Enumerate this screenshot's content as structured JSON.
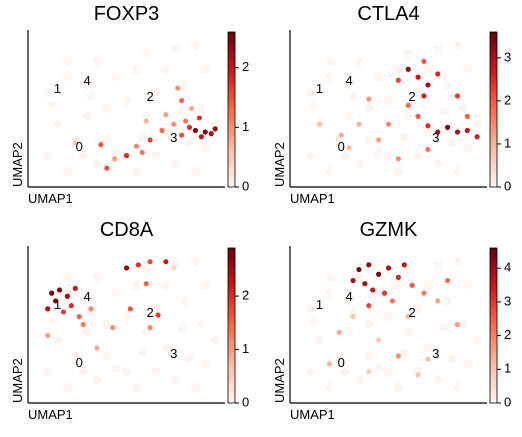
{
  "chart_data": [
    {
      "type": "scatter",
      "title": "FOXP3",
      "xlabel": "UMAP1",
      "ylabel": "UMAP2",
      "xlim": [
        0,
        10
      ],
      "ylim": [
        0,
        10
      ],
      "colormap": [
        "#fff5f0",
        "#fcbba1",
        "#fb6a4a",
        "#cb181d",
        "#67000d"
      ],
      "clim": [
        0,
        2.6
      ],
      "cticks": [
        0,
        1,
        2
      ],
      "annotations": [
        {
          "text": "1",
          "x": 1.5,
          "y": 6.2
        },
        {
          "text": "4",
          "x": 3.0,
          "y": 6.7
        },
        {
          "text": "2",
          "x": 6.2,
          "y": 5.7
        },
        {
          "text": "0",
          "x": 2.6,
          "y": 2.5
        },
        {
          "text": "3",
          "x": 7.4,
          "y": 3.1
        }
      ],
      "x": [
        1,
        2,
        3,
        1.5,
        2.5,
        1,
        2,
        3.5,
        4,
        5,
        5.5,
        6.5,
        7.5,
        8.5,
        9,
        7,
        6,
        5,
        4,
        3,
        6.5,
        7,
        7.5,
        8.5,
        9,
        8,
        4.5,
        3.5,
        2,
        5.5,
        6,
        8.8,
        9.5,
        4.5,
        2.8,
        1.2,
        3.2,
        5.8,
        7.8,
        8.2,
        8.5,
        9,
        9.3,
        8.8,
        8.2,
        7.8,
        9.5,
        8,
        7.4,
        6.8,
        6.2,
        5.5,
        5.0,
        4.4,
        3.7,
        7.6,
        7.8,
        8.3,
        6.0,
        7.0,
        4.0,
        8.7,
        2.4,
        5.8
      ],
      "y": [
        6,
        7,
        6.5,
        4,
        3,
        2,
        1,
        1.5,
        3,
        2,
        1,
        2,
        1.5,
        1,
        2.5,
        3.5,
        4.5,
        5.5,
        5,
        4.5,
        6,
        7.5,
        8.8,
        9,
        7.5,
        6.5,
        7,
        8,
        8,
        7.5,
        8.5,
        5,
        4,
        2.2,
        2,
        5.2,
        5.8,
        3.2,
        4.8,
        2.8,
        3.6,
        3.5,
        3.4,
        3.2,
        3.8,
        3.3,
        3.7,
        4.2,
        4.0,
        3.6,
        3.0,
        2.6,
        2.0,
        1.8,
        2.7,
        6.3,
        5.5,
        5.0,
        4.2,
        4.6,
        1.2,
        4.4,
        2.8,
        2.2
      ],
      "values": [
        0,
        0,
        0,
        0,
        0,
        0,
        0,
        0,
        0,
        0,
        0,
        0,
        0,
        0,
        0,
        0,
        0,
        0,
        0,
        0,
        0,
        0,
        0,
        0,
        0,
        0,
        0,
        0,
        0,
        0,
        0,
        0,
        0,
        0,
        0,
        0,
        0,
        0,
        0,
        0,
        2.5,
        2.4,
        2.2,
        2.0,
        1.8,
        1.5,
        2.3,
        1.2,
        1.0,
        1.3,
        1.6,
        1.1,
        1.8,
        0.9,
        1.4,
        1.0,
        1.3,
        0.8,
        0.7,
        0.9,
        1.5,
        1.7,
        0.6,
        1.2
      ]
    },
    {
      "type": "scatter",
      "title": "CTLA4",
      "xlabel": "UMAP1",
      "ylabel": "UMAP2",
      "xlim": [
        0,
        10
      ],
      "ylim": [
        0,
        10
      ],
      "colormap": [
        "#fff5f0",
        "#fcbba1",
        "#fb6a4a",
        "#cb181d",
        "#67000d"
      ],
      "clim": [
        0,
        3.6
      ],
      "cticks": [
        0,
        1,
        2,
        3
      ],
      "annotations": [
        {
          "text": "1",
          "x": 1.5,
          "y": 6.2
        },
        {
          "text": "4",
          "x": 3.0,
          "y": 6.7
        },
        {
          "text": "2",
          "x": 6.2,
          "y": 5.7
        },
        {
          "text": "0",
          "x": 2.6,
          "y": 2.5
        },
        {
          "text": "3",
          "x": 7.4,
          "y": 3.1
        }
      ],
      "x": [
        1,
        2,
        3,
        1.5,
        2.5,
        1,
        2,
        3.5,
        4,
        5,
        5.5,
        6.5,
        7.5,
        8.5,
        9,
        7,
        6,
        5,
        4,
        3,
        6.5,
        7,
        7.5,
        8.5,
        9,
        8,
        4.5,
        3.5,
        2,
        5.5,
        6,
        8.8,
        9.5,
        4.5,
        2.8,
        1.2,
        3.2,
        5.8,
        7.8,
        8.2,
        6,
        6.5,
        7,
        7.5,
        5.5,
        6.8,
        8,
        8.5,
        9,
        9.5,
        7.5,
        7,
        6.5,
        6,
        5,
        4.5,
        3.5,
        3,
        5.5,
        7,
        8.5,
        1.5,
        4,
        6.8,
        9,
        2.6
      ],
      "y": [
        6,
        7,
        6.5,
        4,
        3,
        2,
        1,
        1.5,
        3,
        2,
        1,
        2,
        1.5,
        1,
        2.5,
        3.5,
        4.5,
        5.5,
        5,
        4.5,
        6,
        7.5,
        8.8,
        9,
        7.5,
        6.5,
        7,
        8,
        8,
        7.5,
        8.5,
        5,
        4,
        2.2,
        2,
        5.2,
        5.8,
        3.2,
        4.8,
        2.8,
        7.5,
        7,
        6.5,
        7.2,
        6.8,
        8,
        3.8,
        3.5,
        3.6,
        3.2,
        3.5,
        3.9,
        4.5,
        5.2,
        4.0,
        3.0,
        4.0,
        2.5,
        1.8,
        2.4,
        5.8,
        4.0,
        5.6,
        5.8,
        4.5,
        3.3
      ],
      "values": [
        0,
        0,
        0,
        0,
        0,
        0,
        0,
        0,
        0,
        0,
        0,
        0,
        0,
        0,
        0,
        0,
        0,
        0,
        0,
        0,
        0,
        0,
        0,
        0,
        0,
        0,
        0,
        0,
        0,
        0,
        0,
        0,
        0,
        0,
        0,
        0,
        0,
        0,
        0,
        0,
        3.2,
        2.8,
        3.0,
        2.5,
        2.2,
        2.0,
        3.4,
        3.0,
        2.8,
        2.6,
        3.1,
        2.4,
        2.0,
        1.8,
        1.5,
        1.2,
        1.0,
        0.9,
        1.4,
        1.7,
        2.3,
        0.8,
        1.3,
        2.6,
        1.9,
        1.1
      ]
    },
    {
      "type": "scatter",
      "title": "CD8A",
      "xlabel": "UMAP1",
      "ylabel": "UMAP2",
      "xlim": [
        0,
        10
      ],
      "ylim": [
        0,
        10
      ],
      "colormap": [
        "#fff5f0",
        "#fcbba1",
        "#fb6a4a",
        "#cb181d",
        "#67000d"
      ],
      "clim": [
        0,
        2.9
      ],
      "cticks": [
        0,
        1,
        2
      ],
      "annotations": [
        {
          "text": "1",
          "x": 1.5,
          "y": 6.2
        },
        {
          "text": "4",
          "x": 3.0,
          "y": 6.7
        },
        {
          "text": "2",
          "x": 6.2,
          "y": 5.7
        },
        {
          "text": "0",
          "x": 2.6,
          "y": 2.5
        },
        {
          "text": "3",
          "x": 7.4,
          "y": 3.1
        }
      ],
      "x": [
        1,
        2,
        3,
        1.5,
        2.5,
        1,
        2,
        3.5,
        4,
        5,
        5.5,
        6.5,
        7.5,
        8.5,
        9,
        7,
        6,
        5,
        4,
        3,
        6.5,
        7,
        7.5,
        8.5,
        9,
        8,
        4.5,
        3.5,
        2,
        5.5,
        6,
        8.8,
        9.5,
        4.5,
        2.8,
        1.2,
        3.2,
        5.8,
        7.8,
        8.2,
        1.2,
        1.6,
        2.0,
        1.4,
        2.2,
        1.0,
        1.8,
        2.6,
        2.4,
        3.2,
        1.0,
        2.8,
        5.0,
        5.6,
        6.2,
        7.0,
        7.4,
        6.0,
        6.6,
        6.2,
        3.5,
        5.2,
        4.3
      ],
      "y": [
        6,
        7,
        6.5,
        4,
        3,
        2,
        1,
        1.5,
        3,
        2,
        1,
        2,
        1.5,
        1,
        2.5,
        3.5,
        4.5,
        5.5,
        5,
        4.5,
        6,
        7.5,
        8.8,
        9,
        7.5,
        6.5,
        7,
        8,
        8,
        7.5,
        8.5,
        5,
        4,
        2.2,
        2,
        5.2,
        5.8,
        3.2,
        4.8,
        2.8,
        7.0,
        7.2,
        6.8,
        6.5,
        6.2,
        6.0,
        5.8,
        5.5,
        7.3,
        6.0,
        4.3,
        5.0,
        8.6,
        8.8,
        9.0,
        9.0,
        8.6,
        7.6,
        5.6,
        4.8,
        3.5,
        6.0,
        4.8
      ],
      "values": [
        0,
        0,
        0,
        0,
        0,
        0,
        0,
        0,
        0,
        0,
        0,
        0,
        0,
        0,
        0,
        0,
        0,
        0,
        0,
        0,
        0,
        0,
        0,
        0,
        0,
        0,
        0,
        0,
        0,
        0,
        0,
        0,
        0,
        0,
        0,
        0,
        0,
        0,
        0,
        0,
        2.8,
        2.7,
        2.5,
        2.6,
        2.0,
        2.4,
        1.8,
        1.5,
        2.2,
        1.2,
        1.0,
        1.3,
        2.6,
        2.0,
        1.7,
        2.2,
        0.4,
        1.5,
        1.9,
        1.2,
        0.9,
        1.6,
        1.1
      ]
    },
    {
      "type": "scatter",
      "title": "GZMK",
      "xlabel": "UMAP1",
      "ylabel": "UMAP2",
      "xlim": [
        0,
        10
      ],
      "ylim": [
        0,
        10
      ],
      "colormap": [
        "#fff5f0",
        "#fcbba1",
        "#fb6a4a",
        "#cb181d",
        "#67000d"
      ],
      "clim": [
        0,
        4.6
      ],
      "cticks": [
        0,
        1,
        2,
        3,
        4
      ],
      "annotations": [
        {
          "text": "1",
          "x": 1.5,
          "y": 6.2
        },
        {
          "text": "4",
          "x": 3.0,
          "y": 6.7
        },
        {
          "text": "2",
          "x": 6.2,
          "y": 5.7
        },
        {
          "text": "0",
          "x": 2.6,
          "y": 2.5
        },
        {
          "text": "3",
          "x": 7.4,
          "y": 3.1
        }
      ],
      "x": [
        1,
        2,
        3,
        1.5,
        2.5,
        1,
        2,
        3.5,
        4,
        5,
        5.5,
        6.5,
        7.5,
        8.5,
        9,
        7,
        6,
        5,
        4,
        3,
        6.5,
        7,
        7.5,
        8.5,
        9,
        8,
        4.5,
        3.5,
        2,
        5.5,
        6,
        8.8,
        9.5,
        4.5,
        2.8,
        1.2,
        3.2,
        5.8,
        7.8,
        8.2,
        3.5,
        4.0,
        4.5,
        5.0,
        3.8,
        4.2,
        5.5,
        4.8,
        5.8,
        3.2,
        6.2,
        5.2,
        4.0,
        6.8,
        7.5,
        6.0,
        3.2,
        2.5,
        4.5,
        5.5,
        7.0,
        8.5,
        2.0,
        4.0,
        6.5,
        8.0
      ],
      "y": [
        6,
        7,
        6.5,
        4,
        3,
        2,
        1,
        1.5,
        3,
        2,
        1,
        2,
        1.5,
        1,
        2.5,
        3.5,
        4.5,
        5.5,
        5,
        4.5,
        6,
        7.5,
        8.8,
        9,
        7.5,
        6.5,
        7,
        8,
        8,
        7.5,
        8.5,
        5,
        4,
        2.2,
        2,
        5.2,
        5.8,
        3.2,
        4.8,
        2.8,
        8.5,
        8.8,
        8.2,
        8.6,
        7.6,
        7.2,
        8.0,
        7.0,
        8.8,
        7.8,
        7.5,
        6.5,
        6.2,
        7.0,
        6.5,
        5.5,
        5.5,
        4.5,
        4.0,
        3.0,
        2.8,
        5.0,
        2.5,
        2.0,
        1.8,
        7.8
      ],
      "values": [
        0,
        0,
        0,
        0,
        0,
        0,
        0,
        0,
        0,
        0,
        0,
        0,
        0,
        0,
        0,
        0,
        0,
        0,
        0,
        0,
        0,
        0,
        0,
        0,
        0,
        0,
        0,
        0,
        0,
        0,
        0,
        0,
        0,
        0,
        0,
        0,
        0,
        0,
        0,
        0,
        4.5,
        4.2,
        4.4,
        3.8,
        4.0,
        3.5,
        3.2,
        3.0,
        3.6,
        3.9,
        2.5,
        2.2,
        2.8,
        2.0,
        1.5,
        1.2,
        1.0,
        1.4,
        0.9,
        1.8,
        1.1,
        1.6,
        1.2,
        0.8,
        1.0,
        2.3
      ]
    }
  ]
}
